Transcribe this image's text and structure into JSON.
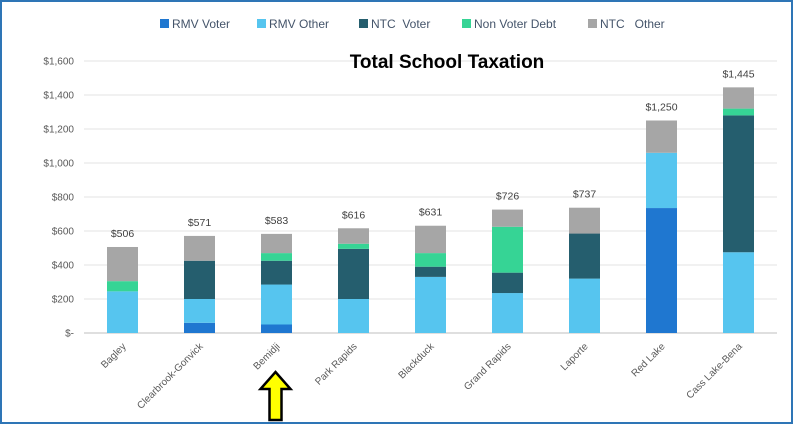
{
  "chart_data": {
    "type": "bar",
    "stacked": true,
    "title": "Total School Taxation",
    "xlabel": "",
    "ylabel": "",
    "ylim": [
      0,
      1600
    ],
    "yticks": [
      0,
      200,
      400,
      600,
      800,
      1000,
      1200,
      1400,
      1600
    ],
    "ytick_labels": [
      "$-",
      "$200",
      "$400",
      "$600",
      "$800",
      "$1,000",
      "$1,200",
      "$1,400",
      "$1,600"
    ],
    "grid": true,
    "legend_position": "top",
    "categories": [
      "Bagley",
      "Clearbrook-Gonvick",
      "Bemidji",
      "Park Rapids",
      "Blackduck",
      "Grand Rapids",
      "Laporte",
      "Red Lake",
      "Cass Lake-Bena"
    ],
    "series": [
      {
        "name": "RMV Voter",
        "color": "#1f77d0",
        "values": [
          0,
          60,
          50,
          0,
          0,
          0,
          0,
          735,
          0
        ]
      },
      {
        "name": "RMV Other",
        "color": "#56c5ef",
        "values": [
          245,
          140,
          235,
          200,
          330,
          235,
          320,
          325,
          475
        ]
      },
      {
        "name": "NTC  Voter",
        "color": "#255e6e",
        "values": [
          0,
          225,
          140,
          295,
          60,
          120,
          265,
          0,
          805
        ]
      },
      {
        "name": "Non Voter Debt",
        "color": "#36d495",
        "values": [
          60,
          0,
          45,
          30,
          80,
          270,
          0,
          0,
          40
        ]
      },
      {
        "name": "NTC   Other",
        "color": "#a6a6a6",
        "values": [
          201,
          146,
          113,
          91,
          161,
          101,
          152,
          190,
          125
        ]
      }
    ],
    "totals": [
      506,
      571,
      583,
      616,
      631,
      726,
      737,
      1250,
      1445
    ],
    "total_labels": [
      "$506",
      "$571",
      "$583",
      "$616",
      "$631",
      "$726",
      "$737",
      "$1,250",
      "$1,445"
    ],
    "annotation": {
      "type": "arrow",
      "target_category": "Bemidji",
      "color": "#ffff00"
    }
  }
}
